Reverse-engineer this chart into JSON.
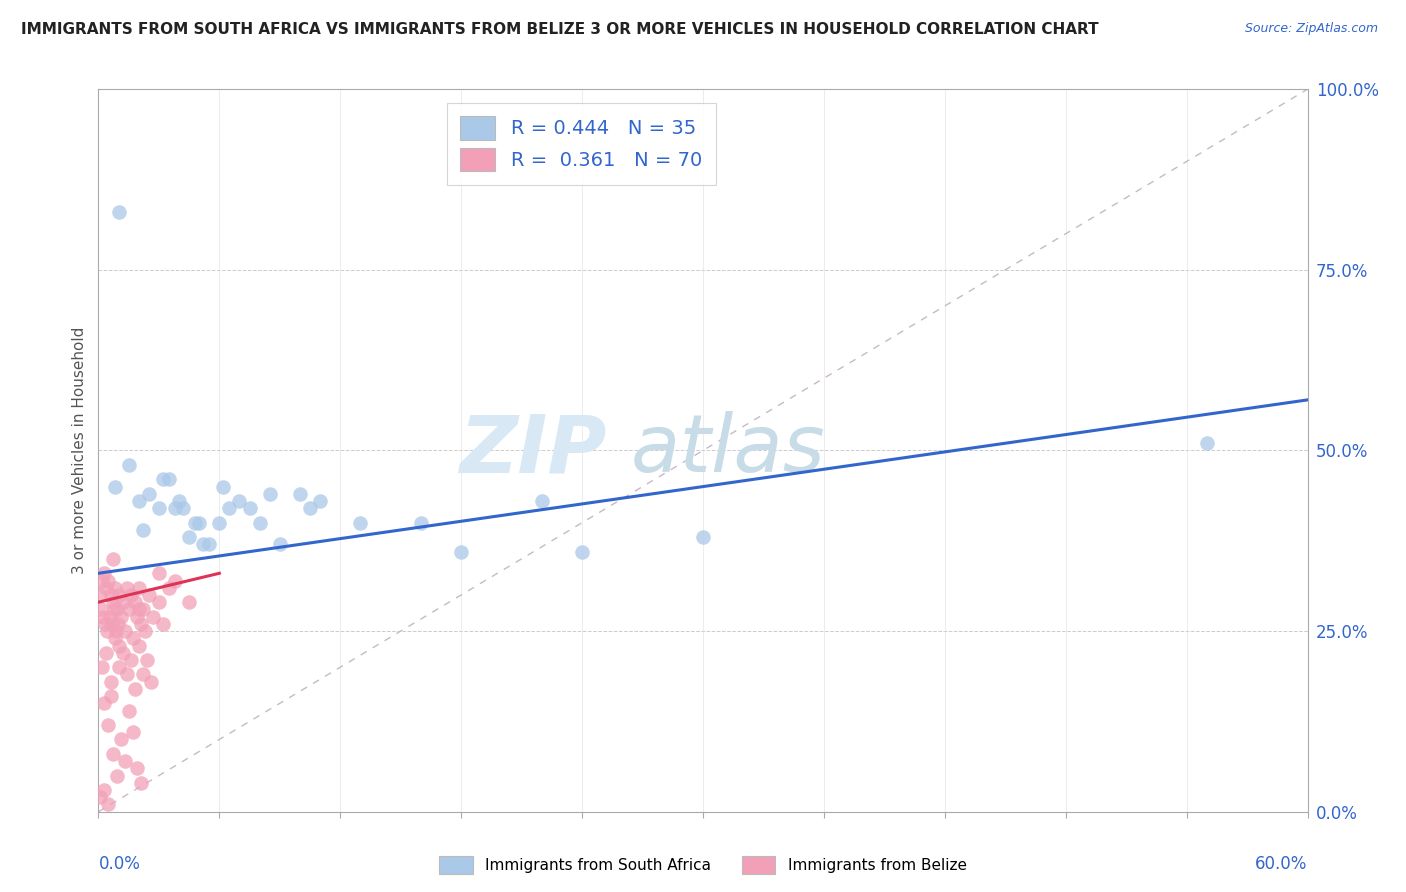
{
  "title": "IMMIGRANTS FROM SOUTH AFRICA VS IMMIGRANTS FROM BELIZE 3 OR MORE VEHICLES IN HOUSEHOLD CORRELATION CHART",
  "source_text": "Source: ZipAtlas.com",
  "ylabel": "3 or more Vehicles in Household",
  "ytick_vals": [
    0.0,
    25.0,
    50.0,
    75.0,
    100.0
  ],
  "xlim": [
    0.0,
    60.0
  ],
  "ylim": [
    0.0,
    100.0
  ],
  "blue_color": "#aac8e8",
  "pink_color": "#f2a0b8",
  "line_blue_color": "#3366cc",
  "line_pink_color": "#dd3355",
  "diagonal_color": "#c8b8c8",
  "blue_line_x0": 0.0,
  "blue_line_y0": 33.0,
  "blue_line_x1": 60.0,
  "blue_line_y1": 57.0,
  "pink_line_x0": 0.0,
  "pink_line_y0": 29.0,
  "pink_line_x1": 6.0,
  "pink_line_y1": 33.0,
  "blue_points_x": [
    0.8,
    1.5,
    2.0,
    2.5,
    3.0,
    3.5,
    4.0,
    4.5,
    5.0,
    5.5,
    6.0,
    7.0,
    8.0,
    9.0,
    10.0,
    11.0,
    13.0,
    16.0,
    22.0,
    24.0,
    30.0,
    55.0,
    2.2,
    3.2,
    4.2,
    5.2,
    6.2,
    7.5,
    8.5,
    10.5,
    3.8,
    6.5,
    18.0,
    1.0,
    4.8
  ],
  "blue_points_y": [
    45.0,
    48.0,
    43.0,
    44.0,
    42.0,
    46.0,
    43.0,
    38.0,
    40.0,
    37.0,
    40.0,
    43.0,
    40.0,
    37.0,
    44.0,
    43.0,
    40.0,
    40.0,
    43.0,
    36.0,
    38.0,
    51.0,
    39.0,
    46.0,
    42.0,
    37.0,
    45.0,
    42.0,
    44.0,
    42.0,
    42.0,
    42.0,
    36.0,
    83.0,
    40.0
  ],
  "pink_points_x": [
    0.1,
    0.15,
    0.2,
    0.25,
    0.3,
    0.35,
    0.4,
    0.45,
    0.5,
    0.55,
    0.6,
    0.65,
    0.7,
    0.75,
    0.8,
    0.85,
    0.9,
    0.95,
    1.0,
    1.1,
    1.2,
    1.3,
    1.4,
    1.5,
    1.6,
    1.7,
    1.8,
    1.9,
    2.0,
    2.1,
    2.2,
    2.3,
    2.5,
    2.7,
    3.0,
    3.2,
    3.5,
    0.2,
    0.4,
    0.6,
    0.8,
    1.0,
    1.2,
    1.4,
    1.6,
    1.8,
    2.0,
    2.2,
    2.4,
    2.6,
    0.3,
    0.5,
    0.7,
    0.9,
    1.1,
    1.3,
    1.5,
    1.7,
    1.9,
    2.1,
    0.1,
    0.3,
    0.5,
    0.7,
    3.8,
    4.5,
    0.6,
    1.0,
    2.0,
    3.0
  ],
  "pink_points_y": [
    30.0,
    28.0,
    32.0,
    27.0,
    33.0,
    26.0,
    31.0,
    25.0,
    32.0,
    27.0,
    30.0,
    26.0,
    29.0,
    28.0,
    31.0,
    25.0,
    28.0,
    26.0,
    30.0,
    27.0,
    29.0,
    25.0,
    31.0,
    28.0,
    30.0,
    24.0,
    29.0,
    27.0,
    31.0,
    26.0,
    28.0,
    25.0,
    30.0,
    27.0,
    29.0,
    26.0,
    31.0,
    20.0,
    22.0,
    18.0,
    24.0,
    20.0,
    22.0,
    19.0,
    21.0,
    17.0,
    23.0,
    19.0,
    21.0,
    18.0,
    15.0,
    12.0,
    8.0,
    5.0,
    10.0,
    7.0,
    14.0,
    11.0,
    6.0,
    4.0,
    2.0,
    3.0,
    1.0,
    35.0,
    32.0,
    29.0,
    16.0,
    23.0,
    28.0,
    33.0
  ]
}
